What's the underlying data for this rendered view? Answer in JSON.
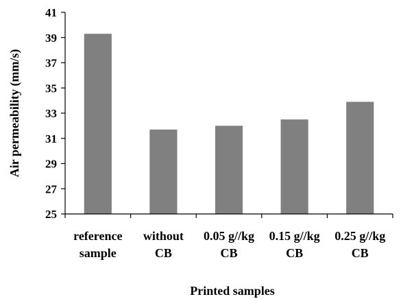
{
  "chart_data": {
    "type": "bar",
    "categories": [
      [
        "reference",
        "sample"
      ],
      [
        "without",
        "CB"
      ],
      [
        "0.05 g//kg",
        "CB"
      ],
      [
        "0.15 g//kg",
        "CB"
      ],
      [
        "0.25 g//kg",
        "CB"
      ]
    ],
    "values": [
      39.3,
      31.7,
      32.0,
      32.5,
      33.9
    ],
    "xlabel": "Printed samples",
    "ylabel": "Air permeability (mm/s)",
    "ylim": [
      25,
      41
    ],
    "yticks": [
      25,
      27,
      29,
      31,
      33,
      35,
      37,
      39,
      41
    ],
    "grid": false,
    "legend": "none",
    "colors": {
      "bar": "#808080",
      "axis": "#000000",
      "background": "#ffffff"
    }
  }
}
